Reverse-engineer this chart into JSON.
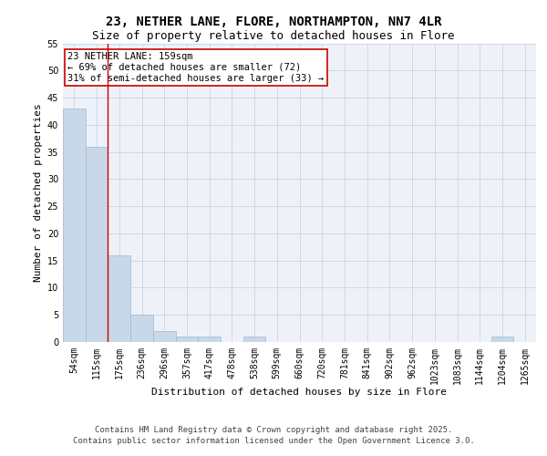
{
  "title_line1": "23, NETHER LANE, FLORE, NORTHAMPTON, NN7 4LR",
  "title_line2": "Size of property relative to detached houses in Flore",
  "xlabel": "Distribution of detached houses by size in Flore",
  "ylabel": "Number of detached properties",
  "categories": [
    "54sqm",
    "115sqm",
    "175sqm",
    "236sqm",
    "296sqm",
    "357sqm",
    "417sqm",
    "478sqm",
    "538sqm",
    "599sqm",
    "660sqm",
    "720sqm",
    "781sqm",
    "841sqm",
    "902sqm",
    "962sqm",
    "1023sqm",
    "1083sqm",
    "1144sqm",
    "1204sqm",
    "1265sqm"
  ],
  "values": [
    43,
    36,
    16,
    5,
    2,
    1,
    1,
    0,
    1,
    0,
    0,
    0,
    0,
    0,
    0,
    0,
    0,
    0,
    0,
    1,
    0
  ],
  "bar_color": "#c8d8e8",
  "bar_edge_color": "#a0b8d0",
  "bg_color": "#eef2f8",
  "grid_color": "#d0d8e8",
  "vline_x_index": 1.5,
  "vline_color": "#cc0000",
  "annotation_text": "23 NETHER LANE: 159sqm\n← 69% of detached houses are smaller (72)\n31% of semi-detached houses are larger (33) →",
  "annotation_box_color": "#ffffff",
  "annotation_box_edge": "#cc0000",
  "ylim": [
    0,
    55
  ],
  "yticks": [
    0,
    5,
    10,
    15,
    20,
    25,
    30,
    35,
    40,
    45,
    50,
    55
  ],
  "footer_line1": "Contains HM Land Registry data © Crown copyright and database right 2025.",
  "footer_line2": "Contains public sector information licensed under the Open Government Licence 3.0.",
  "title_fontsize": 10,
  "subtitle_fontsize": 9,
  "axis_label_fontsize": 8,
  "tick_fontsize": 7,
  "annotation_fontsize": 7.5,
  "footer_fontsize": 6.5
}
